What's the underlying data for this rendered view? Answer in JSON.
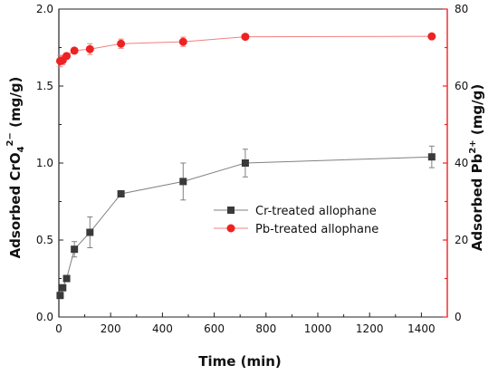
{
  "chart_data": {
    "type": "line",
    "xlabel": "Time (min)",
    "ylabel_left": {
      "pre": "Adsorbed CrO",
      "sub": "4",
      "sup": "2−",
      "post": " (mg/g)"
    },
    "ylabel_right": {
      "pre": "Adsorbed Pb",
      "sup": "2+",
      "post": " (mg/g)"
    },
    "xlim": [
      0,
      1500
    ],
    "ylim_left": [
      0,
      2.0
    ],
    "ylim_right": [
      0,
      80
    ],
    "x_ticks": [
      0,
      200,
      400,
      600,
      800,
      1000,
      1200,
      1400
    ],
    "y_left_ticks": [
      "0.0",
      "0.5",
      "1.0",
      "1.5",
      "2.0"
    ],
    "y_right_ticks": [
      "0",
      "20",
      "40",
      "60",
      "80"
    ],
    "legend_position": "center-right",
    "grid": false,
    "series": [
      {
        "name": "Cr-treated allophane",
        "axis": "left",
        "color": "#808080",
        "marker_color": "#3a3a3a",
        "marker": "square",
        "x": [
          5,
          15,
          30,
          60,
          120,
          240,
          480,
          720,
          1440
        ],
        "y": [
          0.14,
          0.19,
          0.25,
          0.44,
          0.55,
          0.8,
          0.88,
          1.0,
          1.04
        ],
        "err": [
          0,
          0,
          0,
          0.05,
          0.1,
          0.02,
          0.12,
          0.09,
          0.07
        ]
      },
      {
        "name": "Pb-treated allophane",
        "axis": "right",
        "color": "#f08080",
        "marker_color": "#ee2222",
        "marker": "circle",
        "x": [
          5,
          15,
          30,
          60,
          120,
          240,
          480,
          720,
          1440
        ],
        "y": [
          66.5,
          66.7,
          67.8,
          69.2,
          69.6,
          71.0,
          71.5,
          72.8,
          72.9
        ],
        "err": [
          1.5,
          1.2,
          0.6,
          0.6,
          1.4,
          1.2,
          1.2,
          0.5,
          0.4
        ]
      }
    ]
  }
}
